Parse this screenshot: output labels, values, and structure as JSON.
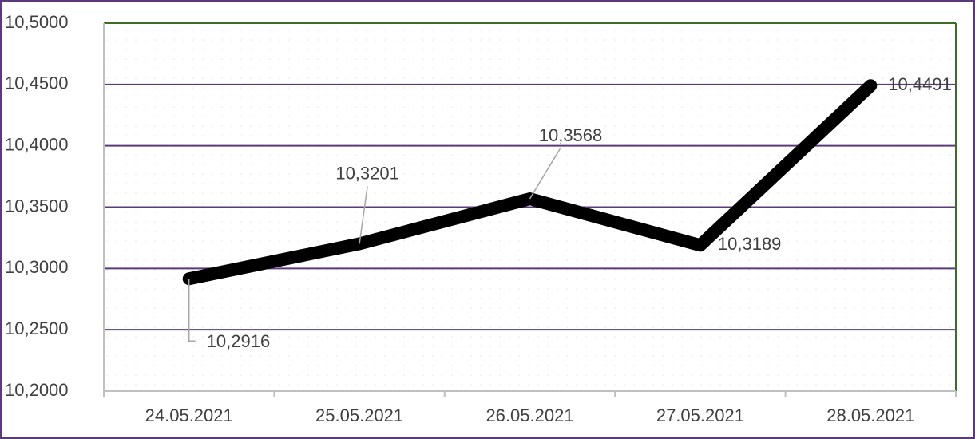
{
  "chart_data": {
    "type": "line",
    "categories": [
      "24.05.2021",
      "25.05.2021",
      "26.05.2021",
      "27.05.2021",
      "28.05.2021"
    ],
    "values": [
      10.2916,
      10.3201,
      10.3568,
      10.3189,
      10.4491
    ],
    "value_labels": [
      "10,2916",
      "10,3201",
      "10,3568",
      "10,3189",
      "10,4491"
    ],
    "color": "#000000",
    "ylim": [
      10.2,
      10.5
    ],
    "yticks": [
      {
        "value": 10.2,
        "label": "10,2000"
      },
      {
        "value": 10.25,
        "label": "10,2500"
      },
      {
        "value": 10.3,
        "label": "10,3000"
      },
      {
        "value": 10.35,
        "label": "10,3500"
      },
      {
        "value": 10.4,
        "label": "10,4000"
      },
      {
        "value": 10.45,
        "label": "10,4500"
      },
      {
        "value": 10.5,
        "label": "10,5000"
      }
    ],
    "grid": true
  }
}
